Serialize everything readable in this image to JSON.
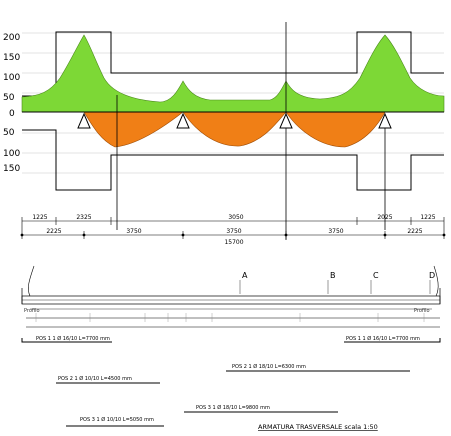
{
  "diagram": {
    "y_axis_labels": [
      "200",
      "150",
      "100",
      "50",
      "0",
      "50",
      "100",
      "150"
    ],
    "section_labels": [
      "A",
      "B",
      "C",
      "D"
    ],
    "dim_row1": [
      "1225",
      "2325",
      "3050",
      "2025",
      "1225"
    ],
    "dim_row2": [
      "2225",
      "3750",
      "3750",
      "3750",
      "2225"
    ],
    "dim_total": "15700",
    "bar_marks": {
      "profilo_left": "Profilo",
      "profilo_right": "Profilo"
    },
    "bars": [
      {
        "text": "POS 1   1 Ø 16/10  L=7700 mm"
      },
      {
        "text": "POS 1   1 Ø 16/10  L=7700 mm"
      },
      {
        "text": "POS 2   1 Ø 18/10  L=6300 mm"
      },
      {
        "text": "POS 2   1 Ø 10/10  L=4500 mm"
      },
      {
        "text": "POS 3   1 Ø 18/10  L=9800 mm"
      },
      {
        "text": "POS 3   1 Ø 10/10  L=5050 mm"
      }
    ],
    "title": "ARMATURA TRASVERSALE  scala 1:50",
    "colors": {
      "positive": "#7dd836",
      "negative": "#f07f16",
      "line": "#000000",
      "grid": "#c8c8c8"
    }
  }
}
